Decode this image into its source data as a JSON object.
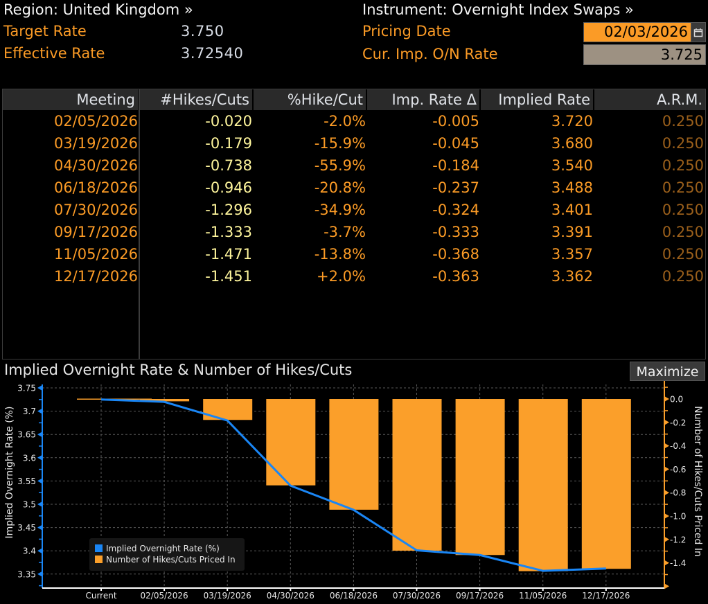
{
  "header": {
    "region_label": "Region: United Kingdom »",
    "instrument_label": "Instrument: Overnight Index Swaps »",
    "target_rate_label": "Target Rate",
    "target_rate_value": "3.750",
    "effective_rate_label": "Effective Rate",
    "effective_rate_value": "3.72540",
    "pricing_date_label": "Pricing Date",
    "pricing_date_value": "02/03/2026",
    "cur_imp_label": "Cur. Imp. O/N Rate",
    "cur_imp_value": "3.725",
    "calendar_icon": "calendar-icon"
  },
  "table": {
    "columns": [
      "Meeting",
      "#Hikes/Cuts",
      "%Hike/Cut",
      "Imp. Rate Δ",
      "Implied Rate",
      "A.R.M."
    ],
    "rows": [
      {
        "meeting": "02/05/2026",
        "hikes": "-0.020",
        "pct": "-2.0%",
        "delta": "-0.005",
        "implied": "3.720",
        "arm": "0.250"
      },
      {
        "meeting": "03/19/2026",
        "hikes": "-0.179",
        "pct": "-15.9%",
        "delta": "-0.045",
        "implied": "3.680",
        "arm": "0.250"
      },
      {
        "meeting": "04/30/2026",
        "hikes": "-0.738",
        "pct": "-55.9%",
        "delta": "-0.184",
        "implied": "3.540",
        "arm": "0.250"
      },
      {
        "meeting": "06/18/2026",
        "hikes": "-0.946",
        "pct": "-20.8%",
        "delta": "-0.237",
        "implied": "3.488",
        "arm": "0.250"
      },
      {
        "meeting": "07/30/2026",
        "hikes": "-1.296",
        "pct": "-34.9%",
        "delta": "-0.324",
        "implied": "3.401",
        "arm": "0.250"
      },
      {
        "meeting": "09/17/2026",
        "hikes": "-1.333",
        "pct": "-3.7%",
        "delta": "-0.333",
        "implied": "3.391",
        "arm": "0.250"
      },
      {
        "meeting": "11/05/2026",
        "hikes": "-1.471",
        "pct": "-13.8%",
        "delta": "-0.368",
        "implied": "3.357",
        "arm": "0.250"
      },
      {
        "meeting": "12/17/2026",
        "hikes": "-1.451",
        "pct": "+2.0%",
        "delta": "-0.363",
        "implied": "3.362",
        "arm": "0.250"
      }
    ]
  },
  "chart_panel": {
    "title": "Implied Overnight Rate & Number of Hikes/Cuts",
    "maximize_label": "Maximize"
  },
  "chart_data": {
    "type": "bar+line",
    "title": "Implied Overnight Rate & Number of Hikes/Cuts",
    "categories": [
      "Current",
      "02/05/2026",
      "03/19/2026",
      "04/30/2026",
      "06/18/2026",
      "07/30/2026",
      "09/17/2026",
      "11/05/2026",
      "12/17/2026"
    ],
    "series": [
      {
        "name": "Implied Overnight Rate (%)",
        "type": "line",
        "axis": "left",
        "color": "#1a86f5",
        "values": [
          3.725,
          3.72,
          3.68,
          3.54,
          3.488,
          3.401,
          3.391,
          3.357,
          3.362
        ]
      },
      {
        "name": "Number of Hikes/Cuts Priced In",
        "type": "bar",
        "axis": "right",
        "color": "#fb9f2a",
        "values": [
          0.0,
          -0.02,
          -0.179,
          -0.738,
          -0.946,
          -1.296,
          -1.333,
          -1.471,
          -1.451
        ]
      }
    ],
    "ylabel_left": "Implied Overnight Rate (%)",
    "ylabel_right": "Number of Hikes/Cuts Priced In",
    "yticks_left": [
      "3.75",
      "3.7",
      "3.65",
      "3.6",
      "3.55",
      "3.5",
      "3.45",
      "3.4",
      "3.35"
    ],
    "ylim_left": [
      3.32,
      3.75
    ],
    "yticks_right": [
      "0.0",
      "-0.2",
      "-0.4",
      "-0.6",
      "-0.8",
      "-1.0",
      "-1.2",
      "-1.4"
    ],
    "ylim_right": [
      -1.6,
      0.1
    ],
    "grid": true,
    "legend_position": "bottom-left",
    "legend": [
      "Implied Overnight Rate (%)",
      "Number of Hikes/Cuts Priced In"
    ]
  }
}
